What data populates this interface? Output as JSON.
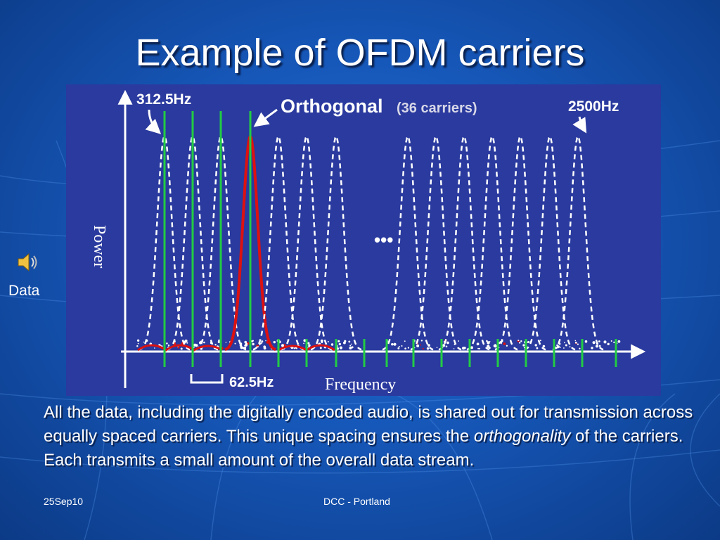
{
  "slide": {
    "title": "Example of OFDM carriers",
    "body": {
      "part1": "All the data, including the digitally encoded audio, is shared out for transmission across equally spaced carriers.   This unique spacing ensures the ",
      "emphasis": "orthogonality",
      "part2": " of the carriers.",
      "part3": "  Each transmits a small amount of the overall data stream."
    },
    "footer": {
      "date": "25Sep10",
      "event": "DCC - Portland"
    },
    "audio": {
      "icon": "speaker-icon",
      "label": "Data"
    }
  },
  "diagram": {
    "y_axis_label": "Power",
    "x_axis_label": "Frequency",
    "label_start_freq": "312.5Hz",
    "label_end_freq": "2500Hz",
    "label_orthogonal": "Orthogonal",
    "label_carriers": "(36 carriers)",
    "label_spacing": "62.5Hz",
    "ellipsis": "•••",
    "colors": {
      "panel": "#2a3a9e",
      "carrier": "#ffffff",
      "highlight": "#dd1111",
      "marker": "#22cc44"
    }
  }
}
